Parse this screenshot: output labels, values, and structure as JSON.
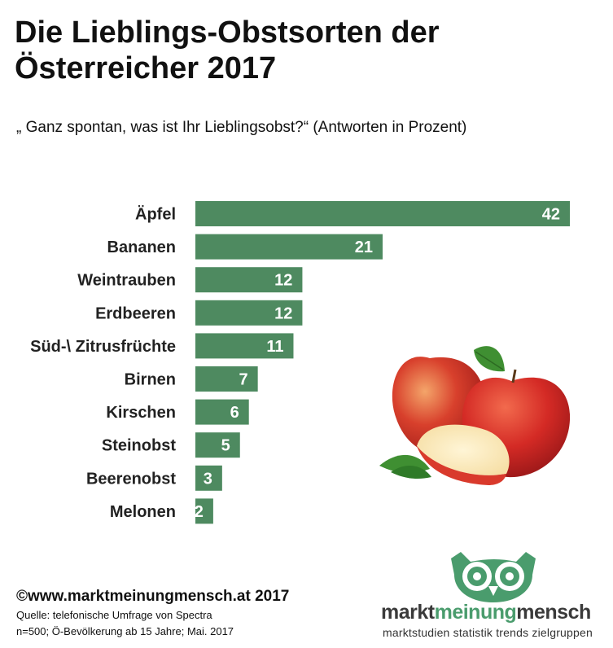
{
  "header": {
    "title": "Die Lieblings-Obstsorten der Österreicher 2017",
    "subtitle": "„ Ganz spontan, was ist Ihr Lieblingsobst?“ (Antworten in Prozent)"
  },
  "chart_data": {
    "type": "bar",
    "orientation": "horizontal",
    "categories": [
      "Äpfel",
      "Bananen",
      "Weintrauben",
      "Erdbeeren",
      "Süd-\\ Zitrusfrüchte",
      "Birnen",
      "Kirschen",
      "Steinobst",
      "Beerenobst",
      "Melonen"
    ],
    "values": [
      42,
      21,
      12,
      12,
      11,
      7,
      6,
      5,
      3,
      2
    ],
    "title": "Die Lieblings-Obstsorten der Österreicher 2017",
    "xlabel": "",
    "ylabel": "",
    "xlim": [
      0,
      42
    ],
    "grid": false,
    "data_labels": true,
    "bar_color": "#4e8a60"
  },
  "footer": {
    "copyright": "©www.marktmeinungmensch.at 2017",
    "source_line1": "Quelle: telefonische Umfrage von Spectra",
    "source_line2": "n=500; Ö-Bevölkerung ab 15 Jahre; Mai. 2017"
  },
  "logo": {
    "word1": "markt",
    "word2": "meinung",
    "word3": "mensch",
    "tagline": "marktstudien  statistik  trends  zielgruppen",
    "dark_color": "#3a3a3a",
    "green_color": "#4a9c6d"
  },
  "image": {
    "subject": "apples-illustration"
  }
}
